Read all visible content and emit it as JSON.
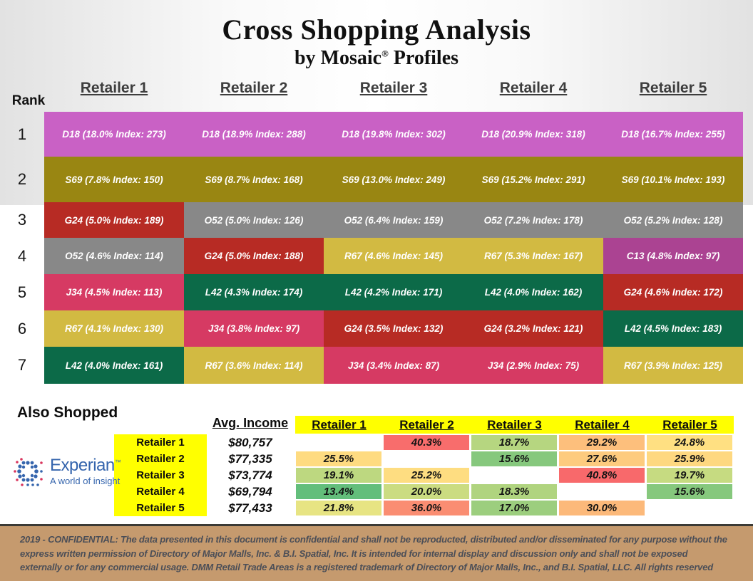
{
  "title": "Cross Shopping Analysis",
  "subtitle": {
    "pre": "by Mosaic",
    "reg": "®",
    "post": " Profiles"
  },
  "rank_label": "Rank",
  "colors": {
    "highlight_yellow": "#ffff00",
    "footer_background": "#c59a6e",
    "experian_blue": "#3565ad",
    "experian_red": "#d9365e",
    "header_text": "#3d3d3d"
  },
  "matrix": {
    "columns": [
      "Retailer 1",
      "Retailer 2",
      "Retailer 3",
      "Retailer 4",
      "Retailer 5"
    ],
    "segment_colors": {
      "D18": "#c961c5",
      "S69": "#998612",
      "G24": "#b72b24",
      "O52": "#888888",
      "R67": "#d2ba42",
      "J34": "#d63a63",
      "L42": "#0c6a48",
      "C13": "#ab4392"
    },
    "rows": [
      {
        "rank": "1",
        "cells": [
          {
            "segment": "D18",
            "text": "D18 (18.0% Index: 273)"
          },
          {
            "segment": "D18",
            "text": "D18 (18.9% Index: 288)"
          },
          {
            "segment": "D18",
            "text": "D18 (19.8% Index: 302)"
          },
          {
            "segment": "D18",
            "text": "D18 (20.9% Index: 318)"
          },
          {
            "segment": "D18",
            "text": "D18 (16.7% Index: 255)"
          }
        ]
      },
      {
        "rank": "2",
        "cells": [
          {
            "segment": "S69",
            "text": "S69 (7.8% Index: 150)"
          },
          {
            "segment": "S69",
            "text": "S69 (8.7% Index: 168)"
          },
          {
            "segment": "S69",
            "text": "S69 (13.0% Index: 249)"
          },
          {
            "segment": "S69",
            "text": "S69 (15.2% Index: 291)"
          },
          {
            "segment": "S69",
            "text": "S69 (10.1% Index: 193)"
          }
        ]
      },
      {
        "rank": "3",
        "cells": [
          {
            "segment": "G24",
            "text": "G24 (5.0% Index: 189)"
          },
          {
            "segment": "O52",
            "text": "O52 (5.0% Index: 126)"
          },
          {
            "segment": "O52",
            "text": "O52 (6.4% Index: 159)"
          },
          {
            "segment": "O52",
            "text": "O52 (7.2% Index: 178)"
          },
          {
            "segment": "O52",
            "text": "O52 (5.2% Index: 128)"
          }
        ]
      },
      {
        "rank": "4",
        "cells": [
          {
            "segment": "O52",
            "text": "O52 (4.6% Index: 114)"
          },
          {
            "segment": "G24",
            "text": "G24 (5.0% Index: 188)"
          },
          {
            "segment": "R67",
            "text": "R67 (4.6% Index: 145)"
          },
          {
            "segment": "R67",
            "text": "R67 (5.3% Index: 167)"
          },
          {
            "segment": "C13",
            "text": "C13 (4.8% Index: 97)"
          }
        ]
      },
      {
        "rank": "5",
        "cells": [
          {
            "segment": "J34",
            "text": "J34 (4.5% Index: 113)"
          },
          {
            "segment": "L42",
            "text": "L42 (4.3% Index: 174)"
          },
          {
            "segment": "L42",
            "text": "L42 (4.2% Index: 171)"
          },
          {
            "segment": "L42",
            "text": "L42 (4.0% Index: 162)"
          },
          {
            "segment": "G24",
            "text": "G24 (4.6% Index: 172)"
          }
        ]
      },
      {
        "rank": "6",
        "cells": [
          {
            "segment": "R67",
            "text": "R67 (4.1% Index: 130)"
          },
          {
            "segment": "J34",
            "text": "J34 (3.8% Index: 97)"
          },
          {
            "segment": "G24",
            "text": "G24 (3.5% Index: 132)"
          },
          {
            "segment": "G24",
            "text": "G24 (3.2% Index: 121)"
          },
          {
            "segment": "L42",
            "text": "L42 (4.5% Index: 183)"
          }
        ]
      },
      {
        "rank": "7",
        "cells": [
          {
            "segment": "L42",
            "text": "L42 (4.0% Index: 161)"
          },
          {
            "segment": "R67",
            "text": "R67 (3.6% Index: 114)"
          },
          {
            "segment": "J34",
            "text": "J34 (3.4% Index: 87)"
          },
          {
            "segment": "J34",
            "text": "J34 (2.9% Index: 75)"
          },
          {
            "segment": "R67",
            "text": "R67 (3.9% Index: 125)"
          }
        ]
      }
    ]
  },
  "also_shopped": {
    "heading": "Also Shopped",
    "income_header": "Avg. Income",
    "columns": [
      "Retailer 1",
      "Retailer 2",
      "Retailer 3",
      "Retailer 4",
      "Retailer 5"
    ],
    "rows": [
      {
        "label": "Retailer 1",
        "income": "$80,757",
        "cells": [
          {
            "text": "",
            "color": "#ffffff"
          },
          {
            "text": "40.3%",
            "color": "#f86d6c"
          },
          {
            "text": "18.7%",
            "color": "#b6d680"
          },
          {
            "text": "29.2%",
            "color": "#fdbf7c"
          },
          {
            "text": "24.8%",
            "color": "#ffe082"
          }
        ]
      },
      {
        "label": "Retailer 2",
        "income": "$77,335",
        "cells": [
          {
            "text": "25.5%",
            "color": "#fedb81"
          },
          {
            "text": "",
            "color": "#ffffff"
          },
          {
            "text": "15.6%",
            "color": "#86c87d"
          },
          {
            "text": "27.6%",
            "color": "#fdcb7e"
          },
          {
            "text": "25.9%",
            "color": "#fed880"
          }
        ]
      },
      {
        "label": "Retailer 3",
        "income": "$73,774",
        "cells": [
          {
            "text": "19.1%",
            "color": "#bdd880"
          },
          {
            "text": "25.2%",
            "color": "#fedd81"
          },
          {
            "text": "",
            "color": "#ffffff"
          },
          {
            "text": "40.8%",
            "color": "#f8696b"
          },
          {
            "text": "19.7%",
            "color": "#c6db81"
          }
        ]
      },
      {
        "label": "Retailer 4",
        "income": "$69,794",
        "cells": [
          {
            "text": "13.4%",
            "color": "#63be7b"
          },
          {
            "text": "20.0%",
            "color": "#cbdc81"
          },
          {
            "text": "18.3%",
            "color": "#b0d47f"
          },
          {
            "text": "",
            "color": "#ffffff"
          },
          {
            "text": "15.6%",
            "color": "#86c87d"
          }
        ]
      },
      {
        "label": "Retailer 5",
        "income": "$77,433",
        "cells": [
          {
            "text": "21.8%",
            "color": "#e7e483"
          },
          {
            "text": "36.0%",
            "color": "#fa8d72"
          },
          {
            "text": "17.0%",
            "color": "#9cce7e"
          },
          {
            "text": "30.0%",
            "color": "#fcb97a"
          },
          {
            "text": "",
            "color": "#ffffff"
          }
        ]
      }
    ]
  },
  "logo": {
    "brand": "Experian",
    "tm": "™",
    "tagline": "A world of insight"
  },
  "footer": {
    "text": "2019 - CONFIDENTIAL: The data presented in this document is confidential and shall not be reproducted, distributed and/or disseminated for any purpose without the express written permission of Directory of Major Malls, Inc. & B.I. Spatial, Inc. It is intended for internal display and discussion only and shall not be exposed externally or for any commercial usage. DMM Retail Trade Areas is a registered trademark of Directory of Major Malls, Inc., and B.I. Spatial, LLC. All rights reserved"
  },
  "chart_data": [
    {
      "type": "table",
      "title": "Cross Shopping Analysis by Mosaic Profiles (top 7 Mosaic segments per retailer)",
      "row_header": "Rank",
      "columns": [
        "Retailer 1",
        "Retailer 2",
        "Retailer 3",
        "Retailer 4",
        "Retailer 5"
      ],
      "rows": [
        {
          "rank": 1,
          "cells": [
            {
              "segment": "D18",
              "percent": 18.0,
              "index": 273
            },
            {
              "segment": "D18",
              "percent": 18.9,
              "index": 288
            },
            {
              "segment": "D18",
              "percent": 19.8,
              "index": 302
            },
            {
              "segment": "D18",
              "percent": 20.9,
              "index": 318
            },
            {
              "segment": "D18",
              "percent": 16.7,
              "index": 255
            }
          ]
        },
        {
          "rank": 2,
          "cells": [
            {
              "segment": "S69",
              "percent": 7.8,
              "index": 150
            },
            {
              "segment": "S69",
              "percent": 8.7,
              "index": 168
            },
            {
              "segment": "S69",
              "percent": 13.0,
              "index": 249
            },
            {
              "segment": "S69",
              "percent": 15.2,
              "index": 291
            },
            {
              "segment": "S69",
              "percent": 10.1,
              "index": 193
            }
          ]
        },
        {
          "rank": 3,
          "cells": [
            {
              "segment": "G24",
              "percent": 5.0,
              "index": 189
            },
            {
              "segment": "O52",
              "percent": 5.0,
              "index": 126
            },
            {
              "segment": "O52",
              "percent": 6.4,
              "index": 159
            },
            {
              "segment": "O52",
              "percent": 7.2,
              "index": 178
            },
            {
              "segment": "O52",
              "percent": 5.2,
              "index": 128
            }
          ]
        },
        {
          "rank": 4,
          "cells": [
            {
              "segment": "O52",
              "percent": 4.6,
              "index": 114
            },
            {
              "segment": "G24",
              "percent": 5.0,
              "index": 188
            },
            {
              "segment": "R67",
              "percent": 4.6,
              "index": 145
            },
            {
              "segment": "R67",
              "percent": 5.3,
              "index": 167
            },
            {
              "segment": "C13",
              "percent": 4.8,
              "index": 97
            }
          ]
        },
        {
          "rank": 5,
          "cells": [
            {
              "segment": "J34",
              "percent": 4.5,
              "index": 113
            },
            {
              "segment": "L42",
              "percent": 4.3,
              "index": 174
            },
            {
              "segment": "L42",
              "percent": 4.2,
              "index": 171
            },
            {
              "segment": "L42",
              "percent": 4.0,
              "index": 162
            },
            {
              "segment": "G24",
              "percent": 4.6,
              "index": 172
            }
          ]
        },
        {
          "rank": 6,
          "cells": [
            {
              "segment": "R67",
              "percent": 4.1,
              "index": 130
            },
            {
              "segment": "J34",
              "percent": 3.8,
              "index": 97
            },
            {
              "segment": "G24",
              "percent": 3.5,
              "index": 132
            },
            {
              "segment": "G24",
              "percent": 3.2,
              "index": 121
            },
            {
              "segment": "L42",
              "percent": 4.5,
              "index": 183
            }
          ]
        },
        {
          "rank": 7,
          "cells": [
            {
              "segment": "L42",
              "percent": 4.0,
              "index": 161
            },
            {
              "segment": "R67",
              "percent": 3.6,
              "index": 114
            },
            {
              "segment": "J34",
              "percent": 3.4,
              "index": 87
            },
            {
              "segment": "J34",
              "percent": 2.9,
              "index": 75
            },
            {
              "segment": "R67",
              "percent": 3.9,
              "index": 125
            }
          ]
        }
      ]
    },
    {
      "type": "heatmap",
      "title": "Also Shopped",
      "columns": [
        "Retailer 1",
        "Retailer 2",
        "Retailer 3",
        "Retailer 4",
        "Retailer 5"
      ],
      "rows": [
        {
          "label": "Retailer 1",
          "avg_income": 80757,
          "values": [
            null,
            40.3,
            18.7,
            29.2,
            24.8
          ]
        },
        {
          "label": "Retailer 2",
          "avg_income": 77335,
          "values": [
            25.5,
            null,
            15.6,
            27.6,
            25.9
          ]
        },
        {
          "label": "Retailer 3",
          "avg_income": 73774,
          "values": [
            19.1,
            25.2,
            null,
            40.8,
            19.7
          ]
        },
        {
          "label": "Retailer 4",
          "avg_income": 69794,
          "values": [
            13.4,
            20.0,
            18.3,
            null,
            15.6
          ]
        },
        {
          "label": "Retailer 5",
          "avg_income": 77433,
          "values": [
            21.8,
            36.0,
            17.0,
            30.0,
            null
          ]
        }
      ],
      "color_scale": {
        "min_color": "#63be7b",
        "mid_color": "#ffeb84",
        "max_color": "#f8696b"
      }
    }
  ]
}
